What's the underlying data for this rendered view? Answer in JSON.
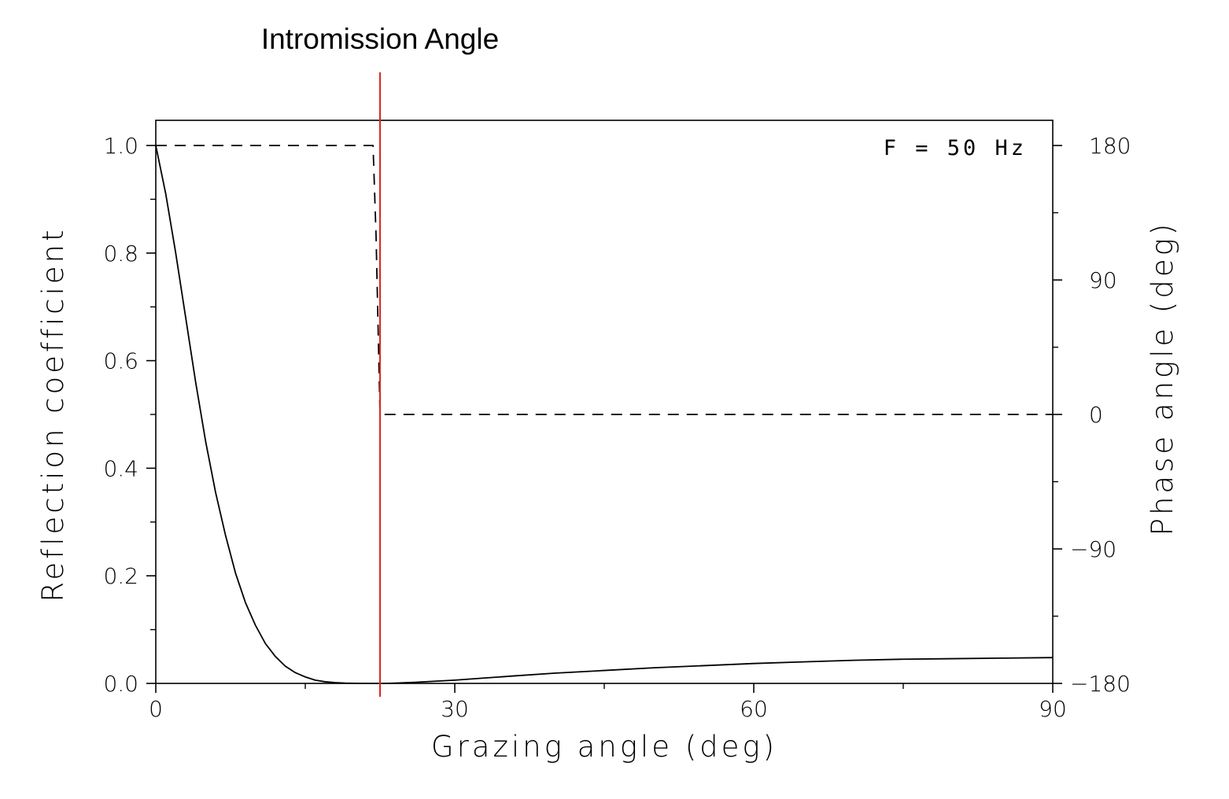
{
  "annotation": {
    "label": "Intromission Angle",
    "x": 22.5,
    "color": "#d42a1e"
  },
  "frequency_label": "F  =  50  Hz",
  "chart_data": {
    "type": "line",
    "xlabel": "Grazing angle (deg)",
    "ylabel": "Reflection coefficient",
    "y2label": "Phase angle (deg)",
    "xlim": [
      0,
      90
    ],
    "ylim": [
      0,
      1.05
    ],
    "y2lim": [
      -180,
      180
    ],
    "xticks": [
      0,
      30,
      60,
      90
    ],
    "xtick_labels": [
      "0",
      "30",
      "60",
      "90"
    ],
    "xminor": [
      15,
      45,
      75
    ],
    "yticks": [
      0,
      0.2,
      0.4,
      0.6,
      0.8,
      1.0
    ],
    "ytick_labels": [
      "0.0",
      "0.2",
      "0.4",
      "0.6",
      "0.8",
      "1.0"
    ],
    "yminor": [
      0.1,
      0.3,
      0.5,
      0.7,
      0.9
    ],
    "y2ticks": [
      -180,
      -90,
      0,
      90,
      180
    ],
    "y2tick_labels": [
      "−180",
      "−90",
      "0",
      "90",
      "180"
    ],
    "y2minor": [
      -135,
      -45,
      45,
      135
    ],
    "series": [
      {
        "style": "solid",
        "color": "#000000",
        "axis": "left",
        "x": [
          0,
          1,
          2,
          3,
          4,
          5,
          6,
          7,
          8,
          9,
          10,
          11,
          12,
          13,
          14,
          15,
          16,
          17,
          18,
          19,
          20,
          21,
          22,
          22.5,
          23,
          24,
          26,
          28,
          30,
          33,
          36,
          40,
          45,
          50,
          55,
          60,
          65,
          70,
          75,
          80,
          85,
          90
        ],
        "y": [
          1.0,
          0.91,
          0.8,
          0.68,
          0.56,
          0.45,
          0.355,
          0.275,
          0.205,
          0.15,
          0.108,
          0.074,
          0.05,
          0.032,
          0.02,
          0.012,
          0.006,
          0.003,
          0.0015,
          0.0006,
          0.0002,
          0.0,
          0.0,
          0.0,
          0.0,
          0.0005,
          0.002,
          0.004,
          0.006,
          0.01,
          0.014,
          0.019,
          0.024,
          0.029,
          0.033,
          0.037,
          0.04,
          0.043,
          0.045,
          0.046,
          0.047,
          0.048
        ]
      },
      {
        "style": "dashed",
        "color": "#000000",
        "axis": "right",
        "x": [
          0,
          21.8,
          22.1,
          22.3,
          22.5,
          90
        ],
        "y": [
          180,
          180,
          120,
          60,
          0,
          0
        ]
      }
    ]
  }
}
